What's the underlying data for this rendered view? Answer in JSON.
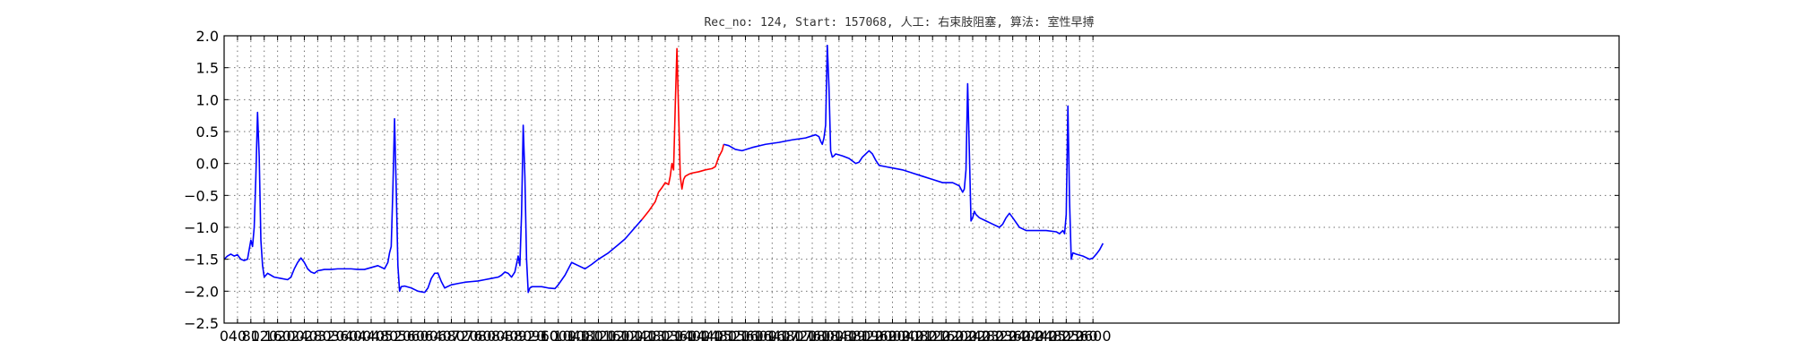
{
  "chart_data": {
    "type": "line",
    "title": "Rec_no: 124, Start: 157068, 人工: 右束肢阻塞, 算法: 室性早搏",
    "xlabel": "",
    "ylabel": "",
    "xlim": [
      0,
      4000
    ],
    "ylim": [
      -2.5,
      2.0
    ],
    "grid": true,
    "x_ticks": [
      "0",
      "40",
      "80",
      "120",
      "160",
      "200",
      "240",
      "280",
      "320",
      "360",
      "400",
      "440",
      "480",
      "520",
      "560",
      "600",
      "640",
      "680",
      "720",
      "760",
      "800",
      "840",
      "880",
      "920",
      "960",
      "1000",
      "1040",
      "1080",
      "1120",
      "1160",
      "1200",
      "1240",
      "1280",
      "1320",
      "1360",
      "1400",
      "1440",
      "1480",
      "1520",
      "1560",
      "1600",
      "1640",
      "1680",
      "1720",
      "1760",
      "1800",
      "1840",
      "1880",
      "1920",
      "1960",
      "2000",
      "2040",
      "2080",
      "2120",
      "2160",
      "2200",
      "2240",
      "2280",
      "2320",
      "2360",
      "2400",
      "2440",
      "2480",
      "2520",
      "2560",
      "2600"
    ],
    "y_ticks": [
      "2.0",
      "1.5",
      "1.0",
      "0.5",
      "0.0",
      "−0.5",
      "−1.0",
      "−1.5",
      "−2.0",
      "−2.5"
    ],
    "series": [
      {
        "color": "#0000ff",
        "x": [
          0,
          10,
          20,
          30,
          40,
          50,
          60,
          70,
          80,
          85,
          90,
          95,
          100,
          105,
          110,
          115,
          120,
          130,
          140,
          150,
          170,
          190,
          200,
          210,
          220,
          230,
          240,
          250,
          260,
          270,
          280,
          290,
          300,
          320,
          340,
          360,
          380,
          400,
          420,
          440,
          460,
          480,
          490,
          495,
          500,
          505,
          510,
          515,
          520,
          525,
          530,
          540,
          560,
          580,
          600,
          610,
          620,
          630,
          640,
          650,
          660,
          680,
          700,
          720,
          740,
          760,
          780,
          800,
          820,
          830,
          840,
          850,
          860,
          870,
          880,
          885,
          890,
          895,
          900,
          905,
          910,
          915,
          920,
          930,
          950,
          970,
          990,
          1000,
          1020,
          1040,
          1060,
          1080,
          1100,
          1120,
          1150,
          1180,
          1200,
          1230,
          1250
        ],
        "y": [
          -1.5,
          -1.45,
          -1.42,
          -1.45,
          -1.43,
          -1.5,
          -1.52,
          -1.5,
          -1.2,
          -1.3,
          -1.0,
          -0.2,
          0.8,
          0.1,
          -1.2,
          -1.6,
          -1.78,
          -1.72,
          -1.75,
          -1.78,
          -1.8,
          -1.82,
          -1.78,
          -1.65,
          -1.55,
          -1.48,
          -1.55,
          -1.65,
          -1.7,
          -1.72,
          -1.68,
          -1.67,
          -1.66,
          -1.66,
          -1.65,
          -1.65,
          -1.65,
          -1.66,
          -1.66,
          -1.63,
          -1.6,
          -1.65,
          -1.55,
          -1.4,
          -1.3,
          -0.4,
          0.7,
          -0.4,
          -1.6,
          -2.0,
          -1.93,
          -1.92,
          -1.95,
          -2.0,
          -2.02,
          -1.95,
          -1.8,
          -1.72,
          -1.72,
          -1.85,
          -1.95,
          -1.9,
          -1.88,
          -1.86,
          -1.85,
          -1.84,
          -1.82,
          -1.8,
          -1.78,
          -1.75,
          -1.7,
          -1.72,
          -1.78,
          -1.7,
          -1.45,
          -1.6,
          -0.8,
          0.6,
          -0.2,
          -1.5,
          -2.02,
          -1.95,
          -1.93,
          -1.93,
          -1.93,
          -1.95,
          -1.96,
          -1.9,
          -1.75,
          -1.55,
          -1.6,
          -1.65,
          -1.58,
          -1.5,
          -1.4,
          -1.27,
          -1.18,
          -1.0,
          -0.88
        ]
      },
      {
        "color": "#ff0000",
        "x": [
          1250,
          1270,
          1290,
          1300,
          1310,
          1320,
          1330,
          1335,
          1340,
          1345,
          1350,
          1355,
          1360,
          1365,
          1370,
          1375,
          1380,
          1390,
          1400,
          1420,
          1440,
          1460,
          1470,
          1480,
          1490,
          1495
        ],
        "y": [
          -0.88,
          -0.75,
          -0.6,
          -0.45,
          -0.38,
          -0.3,
          -0.33,
          -0.2,
          0.0,
          -0.1,
          0.9,
          1.8,
          0.8,
          -0.2,
          -0.4,
          -0.25,
          -0.2,
          -0.17,
          -0.15,
          -0.13,
          -0.1,
          -0.08,
          -0.05,
          0.1,
          0.2,
          0.3
        ]
      },
      {
        "color": "#0000ff",
        "x": [
          1495,
          1510,
          1530,
          1550,
          1580,
          1620,
          1660,
          1700,
          1740,
          1770,
          1780,
          1785,
          1790,
          1795,
          1800,
          1805,
          1810,
          1815,
          1820,
          1825,
          1830,
          1850,
          1870,
          1890,
          1900,
          1910,
          1930,
          1940,
          1950,
          1960,
          1980,
          2000,
          2030,
          2060,
          2090,
          2120,
          2150,
          2180,
          2200,
          2210,
          2215,
          2220,
          2225,
          2230,
          2235,
          2240,
          2245,
          2250,
          2260,
          2280,
          2300,
          2320,
          2330,
          2340,
          2350,
          2360,
          2380,
          2400,
          2430,
          2460,
          2490,
          2500,
          2510,
          2515,
          2520,
          2525,
          2530,
          2535,
          2540,
          2550,
          2570,
          2590,
          2600,
          2610,
          2620,
          2630
        ],
        "y": [
          0.3,
          0.28,
          0.22,
          0.2,
          0.25,
          0.3,
          0.33,
          0.37,
          0.4,
          0.45,
          0.42,
          0.35,
          0.3,
          0.4,
          0.6,
          1.85,
          1.2,
          0.2,
          0.1,
          0.12,
          0.15,
          0.12,
          0.08,
          0.0,
          0.02,
          0.1,
          0.2,
          0.15,
          0.05,
          -0.03,
          -0.05,
          -0.07,
          -0.1,
          -0.15,
          -0.2,
          -0.25,
          -0.3,
          -0.3,
          -0.35,
          -0.45,
          -0.4,
          -0.1,
          1.25,
          0.2,
          -0.9,
          -0.85,
          -0.75,
          -0.8,
          -0.85,
          -0.9,
          -0.95,
          -1.0,
          -0.95,
          -0.85,
          -0.78,
          -0.85,
          -1.0,
          -1.05,
          -1.05,
          -1.05,
          -1.07,
          -1.1,
          -1.05,
          -1.1,
          -0.8,
          0.9,
          -0.6,
          -1.5,
          -1.4,
          -1.42,
          -1.45,
          -1.5,
          -1.48,
          -1.42,
          -1.35,
          -1.25
        ]
      }
    ]
  }
}
